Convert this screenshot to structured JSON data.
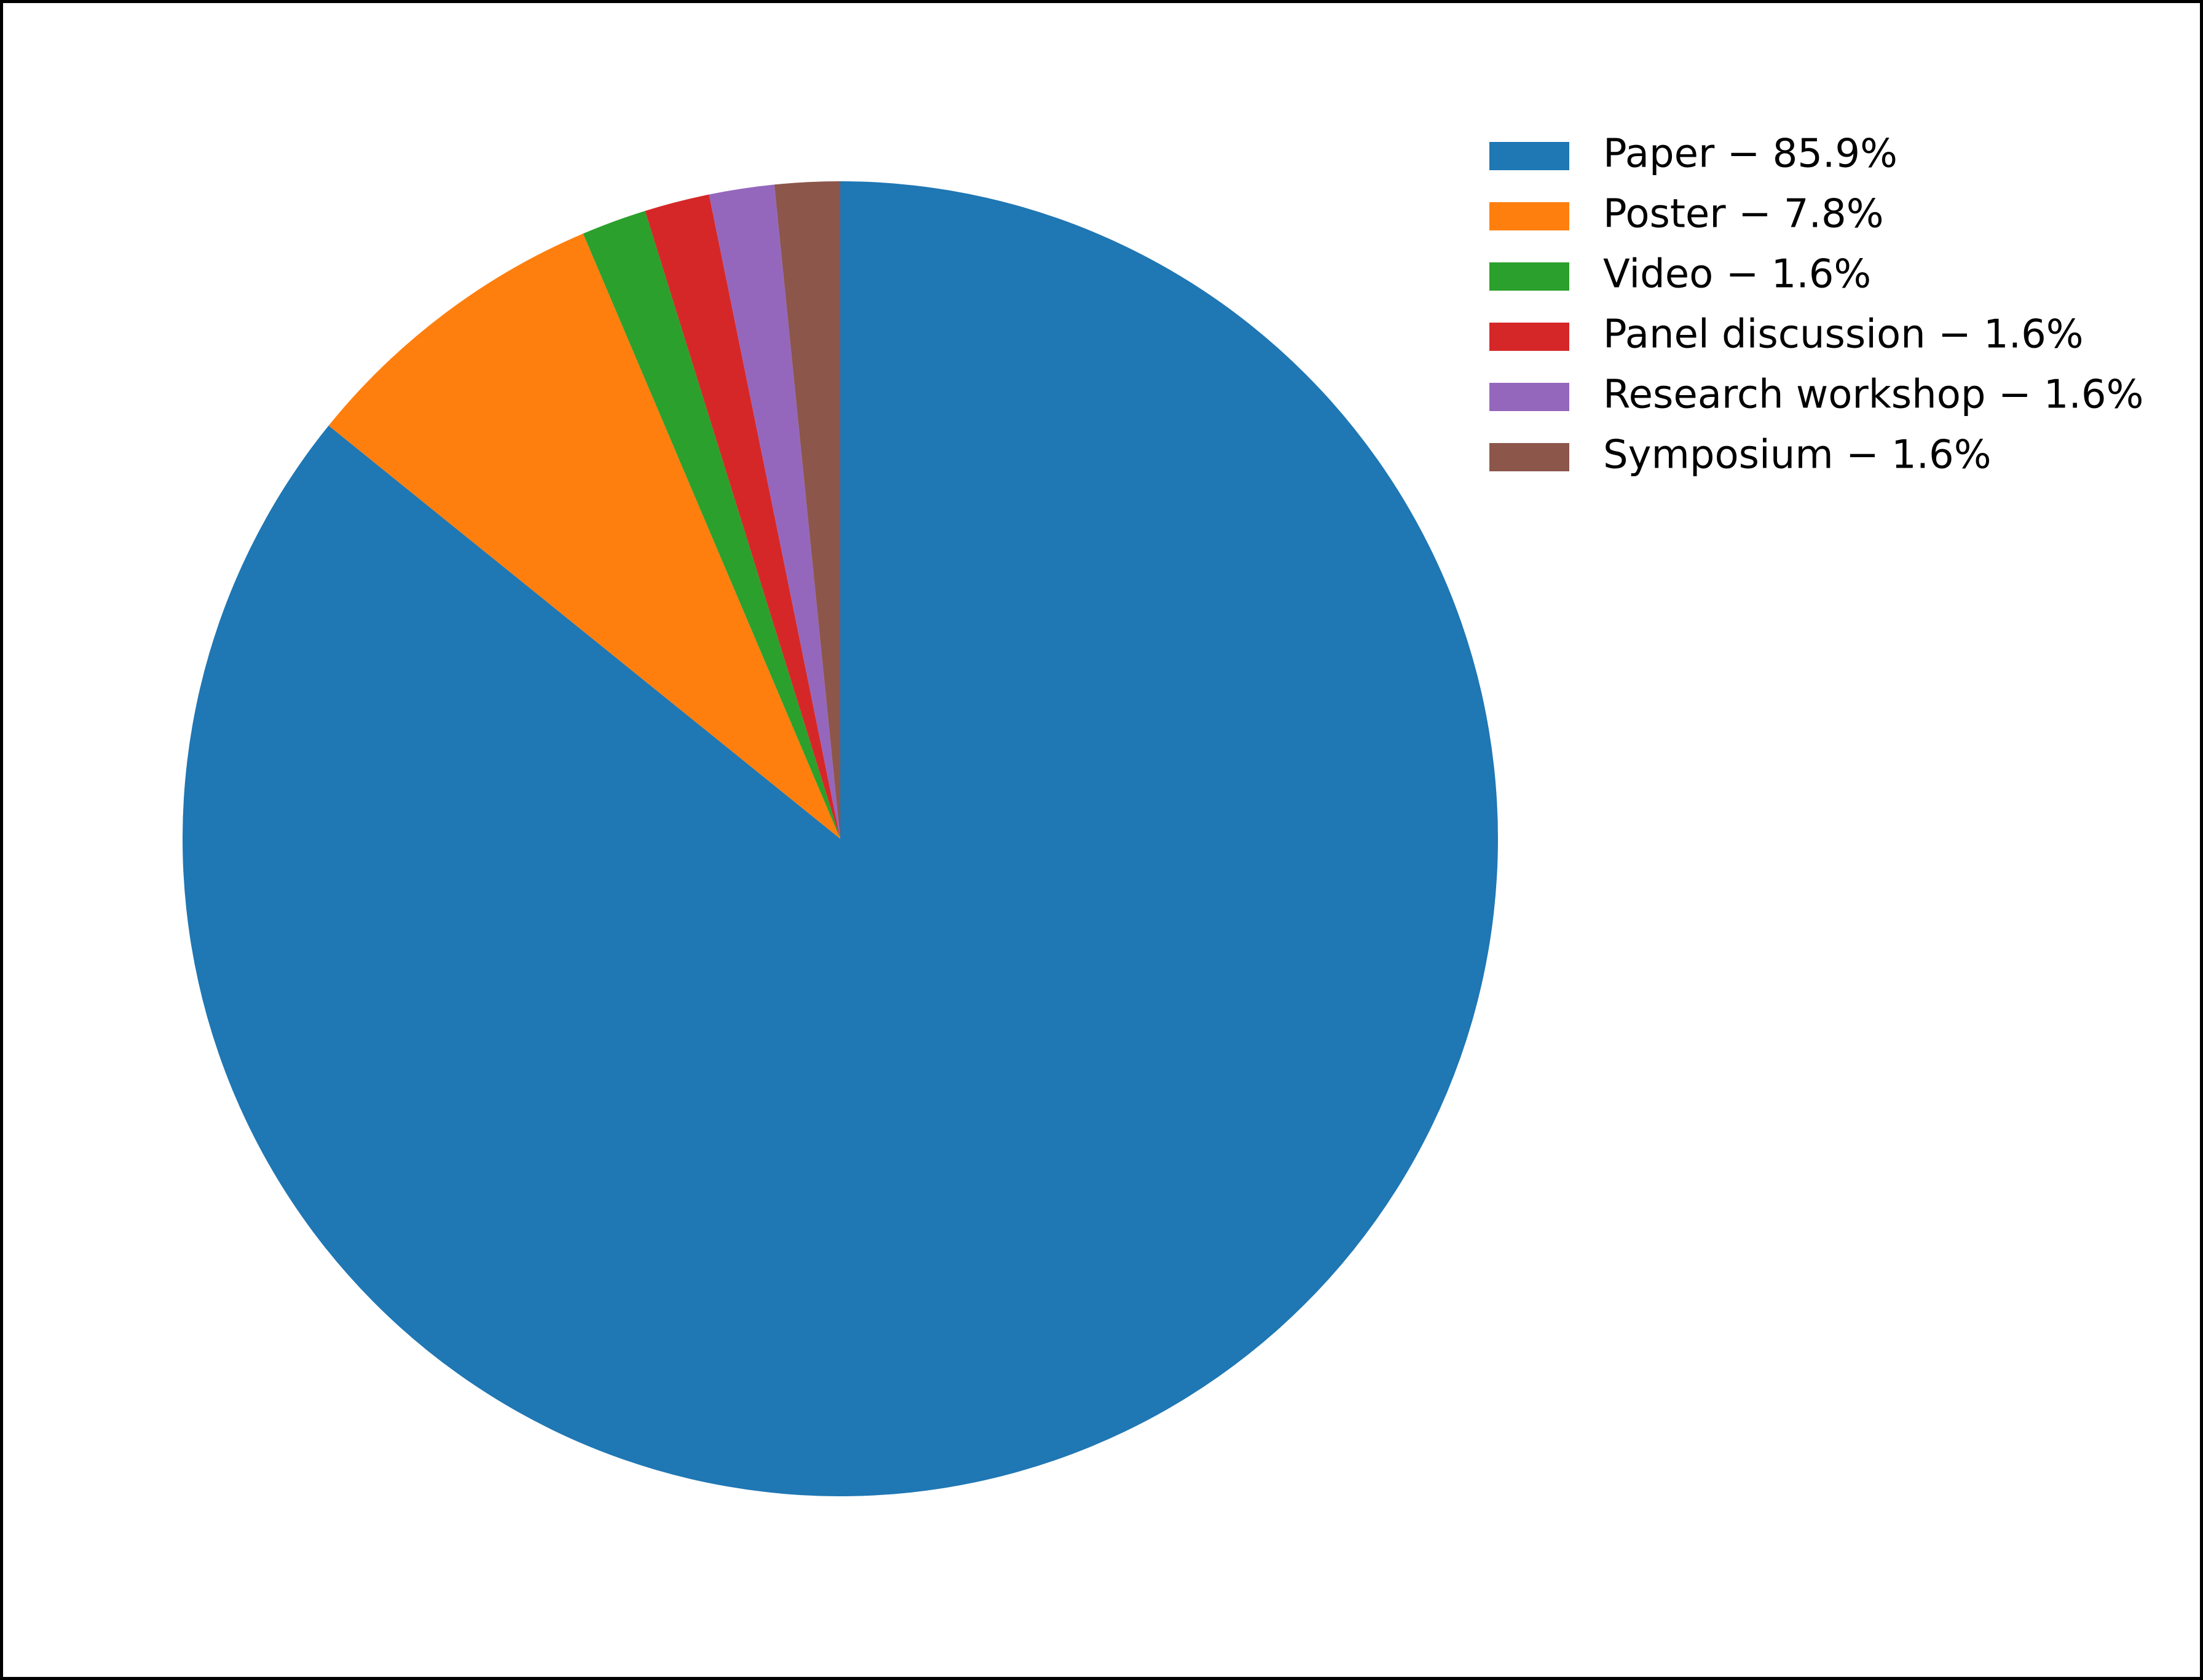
{
  "chart_data": {
    "type": "pie",
    "categories": [
      "Paper − 85.9%",
      "Poster − 7.8%",
      "Video − 1.6%",
      "Panel discussion − 1.6%",
      "Research workshop − 1.6%",
      "Symposium − 1.6%"
    ],
    "values": [
      85.9,
      7.8,
      1.6,
      1.6,
      1.6,
      1.6
    ],
    "colors": [
      "#1f77b4",
      "#ff7f0e",
      "#2ca02c",
      "#d62728",
      "#9467bd",
      "#8c564b"
    ],
    "start_angle": 90,
    "direction": "clockwise",
    "legend": "upper right"
  }
}
